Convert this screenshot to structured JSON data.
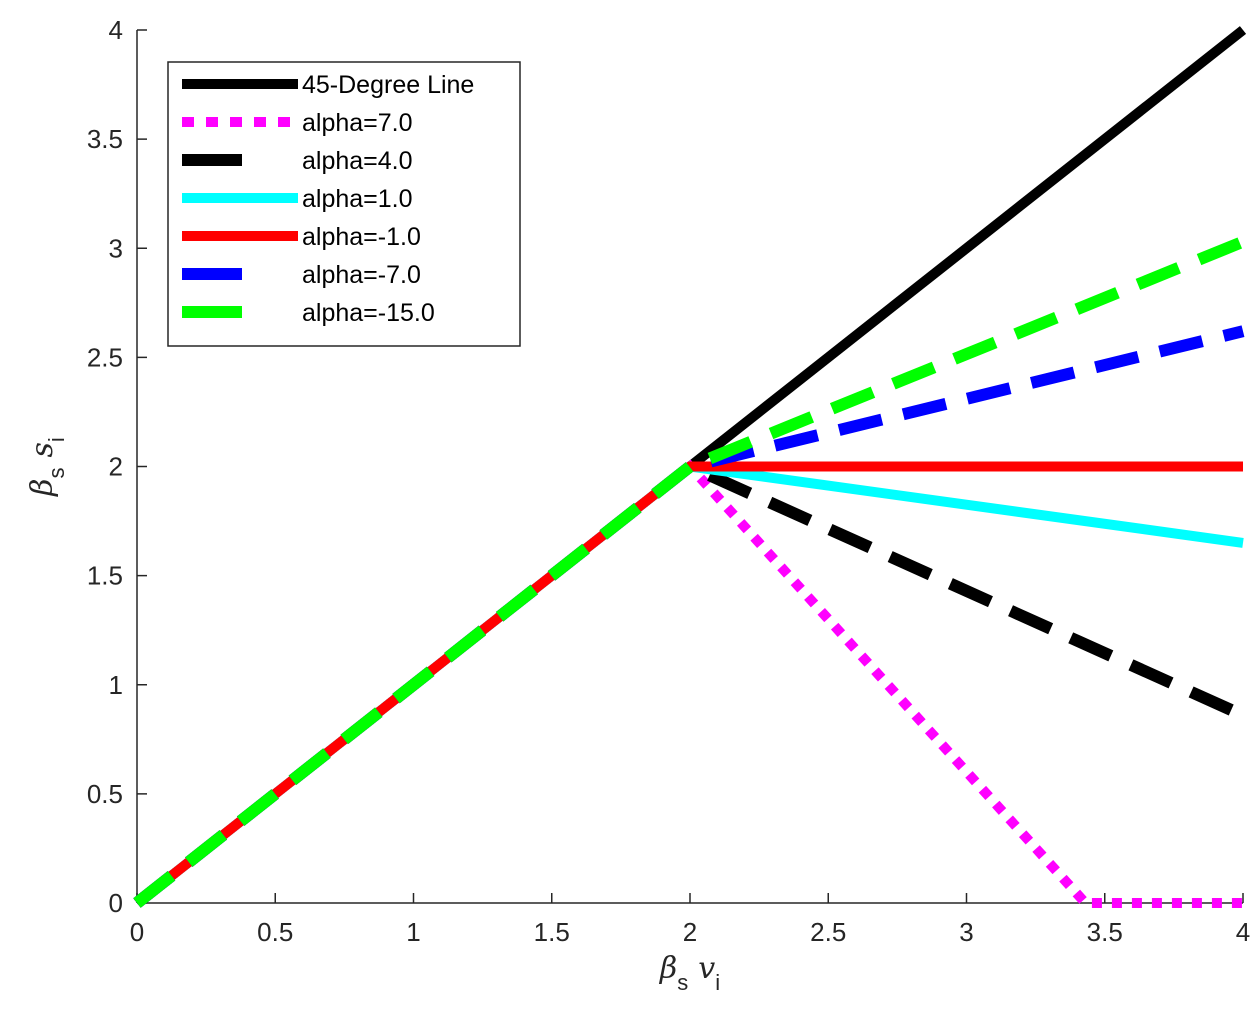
{
  "chart_data": {
    "type": "line",
    "xlim": [
      0,
      4
    ],
    "ylim": [
      0,
      4
    ],
    "x_ticks": [
      "0",
      "0.5",
      "1",
      "1.5",
      "2",
      "2.5",
      "3",
      "3.5",
      "4"
    ],
    "y_ticks": [
      "0",
      "0.5",
      "1",
      "1.5",
      "2",
      "2.5",
      "3",
      "3.5",
      "4"
    ],
    "xlabel": {
      "symbol": "β",
      "sub": "s",
      "var": "v",
      "var_sub": "i"
    },
    "ylabel": {
      "symbol": "β",
      "sub": "s",
      "var": "s",
      "var_sub": "i"
    },
    "grid": false,
    "legend_position": "top-left",
    "series": [
      {
        "name": "45-Degree Line",
        "color": "#000000",
        "style": "solid",
        "points": [
          [
            0,
            0
          ],
          [
            4,
            4
          ]
        ]
      },
      {
        "name": "alpha=7.0",
        "color": "#ff00ff",
        "style": "dotted",
        "points": [
          [
            0,
            0
          ],
          [
            2,
            2
          ],
          [
            3.43,
            0
          ],
          [
            4,
            0
          ]
        ]
      },
      {
        "name": "alpha=4.0",
        "color": "#000000",
        "style": "dashed",
        "points": [
          [
            0,
            0
          ],
          [
            2,
            2
          ],
          [
            4,
            0.86
          ]
        ]
      },
      {
        "name": "alpha=1.0",
        "color": "#00ffff",
        "style": "solid",
        "points": [
          [
            0,
            0
          ],
          [
            2,
            2
          ],
          [
            4,
            1.65
          ]
        ]
      },
      {
        "name": "alpha=-1.0",
        "color": "#ff0000",
        "style": "solid",
        "points": [
          [
            0,
            0
          ],
          [
            2,
            2
          ],
          [
            4,
            2
          ]
        ]
      },
      {
        "name": "alpha=-7.0",
        "color": "#0000ff",
        "style": "dashed",
        "points": [
          [
            0,
            0
          ],
          [
            2,
            2
          ],
          [
            4,
            2.62
          ]
        ]
      },
      {
        "name": "alpha=-15.0",
        "color": "#00ff00",
        "style": "dashed",
        "points": [
          [
            0,
            0
          ],
          [
            2,
            2
          ],
          [
            4,
            3.03
          ]
        ]
      }
    ]
  }
}
